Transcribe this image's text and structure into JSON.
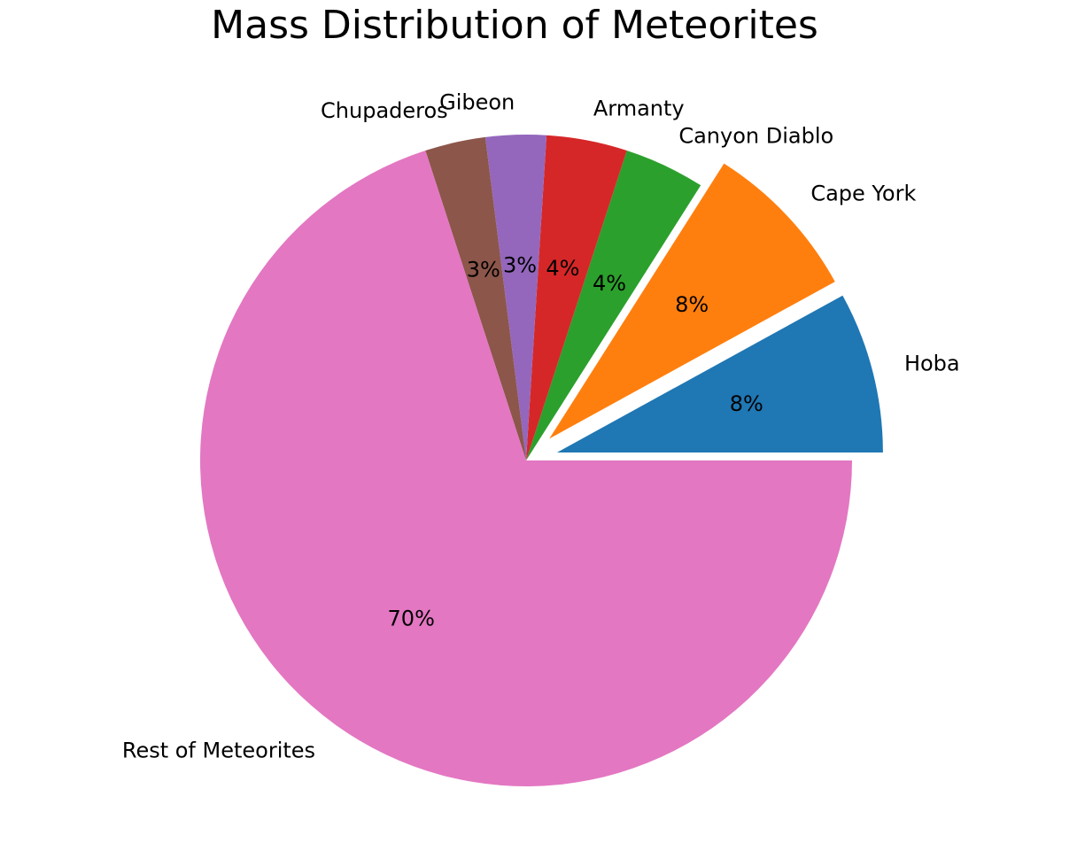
{
  "chart_data": {
    "type": "pie",
    "title": "Mass Distribution of Meteorites",
    "categories": [
      "Hoba",
      "Cape York",
      "Canyon Diablo",
      "Armanty",
      "Gibeon",
      "Chupaderos",
      "Rest of Meteorites"
    ],
    "values": [
      8,
      8,
      4,
      4,
      3,
      3,
      70
    ],
    "value_labels": [
      "8%",
      "8%",
      "4%",
      "4%",
      "3%",
      "3%",
      "70%"
    ],
    "colors": [
      "#1f77b4",
      "#ff7f0e",
      "#2ca02c",
      "#d62728",
      "#9467bd",
      "#8c564b",
      "#e377c2"
    ],
    "exploded": [
      "Hoba",
      "Cape York"
    ],
    "start_angle_deg": 0,
    "direction": "counterclockwise",
    "legend": "none"
  }
}
